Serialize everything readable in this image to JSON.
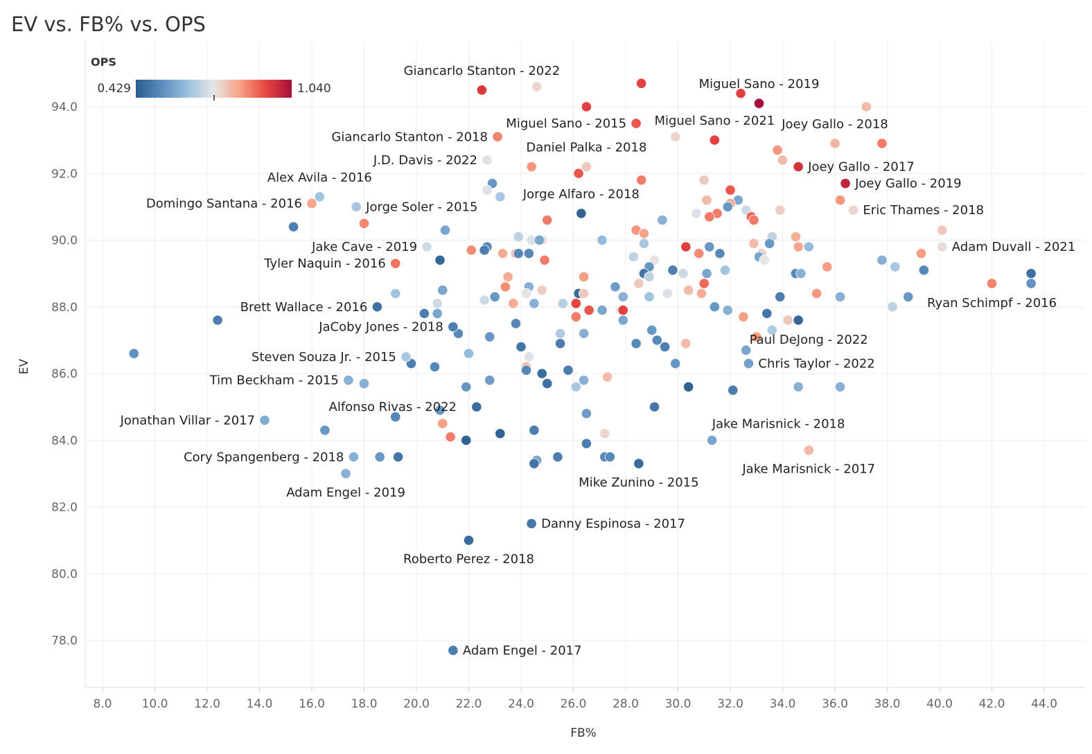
{
  "title": "EV vs. FB% vs. OPS",
  "chart_data": {
    "type": "scatter",
    "title": "EV vs. FB% vs. OPS",
    "xlabel": "FB%",
    "ylabel": "EV",
    "xlim": [
      7.4,
      45.2
    ],
    "ylim": [
      76.8,
      95.8
    ],
    "xticks": [
      "8.0",
      "10.0",
      "12.0",
      "14.0",
      "16.0",
      "18.0",
      "20.0",
      "22.0",
      "24.0",
      "26.0",
      "28.0",
      "30.0",
      "32.0",
      "34.0",
      "36.0",
      "38.0",
      "40.0",
      "42.0",
      "44.0"
    ],
    "yticks": [
      "78.0",
      "80.0",
      "82.0",
      "84.0",
      "86.0",
      "88.0",
      "90.0",
      "92.0",
      "94.0"
    ],
    "grid": true,
    "color_legend": {
      "title": "OPS",
      "min_label": "0.429",
      "max_label": "1.040",
      "min": 0.429,
      "max": 1.04,
      "placement": "top-left",
      "colors": [
        "#2c5d8f",
        "#5b8dbd",
        "#9cc1df",
        "#e6e6e6",
        "#f8a287",
        "#e8463f",
        "#a50f3a"
      ]
    },
    "labeled_points": [
      {
        "label": "Giancarlo Stanton - 2022",
        "x": 22.5,
        "y": 94.5,
        "ops": 0.96,
        "label_side": "above"
      },
      {
        "label": "Miguel Sano - 2019",
        "x": 33.1,
        "y": 94.1,
        "ops": 1.04,
        "label_side": "above"
      },
      {
        "label": "Miguel Sano - 2015",
        "x": 28.4,
        "y": 93.5,
        "ops": 0.92,
        "label_side": "left"
      },
      {
        "label": "Miguel Sano - 2021",
        "x": 31.4,
        "y": 93.0,
        "ops": 0.95,
        "label_side": "above"
      },
      {
        "label": "Joey Gallo - 2018",
        "x": 36.0,
        "y": 92.9,
        "ops": 0.81,
        "label_side": "above"
      },
      {
        "label": "Giancarlo Stanton - 2018",
        "x": 23.1,
        "y": 93.1,
        "ops": 0.87,
        "label_side": "left"
      },
      {
        "label": "Daniel Palka - 2018",
        "x": 26.5,
        "y": 92.2,
        "ops": 0.78,
        "label_side": "above"
      },
      {
        "label": "J.D. Davis - 2022",
        "x": 22.7,
        "y": 92.4,
        "ops": 0.72,
        "label_side": "left"
      },
      {
        "label": "Joey Gallo - 2017",
        "x": 34.6,
        "y": 92.2,
        "ops": 0.97,
        "label_side": "right"
      },
      {
        "label": "Joey Gallo - 2019",
        "x": 36.4,
        "y": 91.7,
        "ops": 1.0,
        "label_side": "right"
      },
      {
        "label": "Alex Avila - 2016",
        "x": 16.3,
        "y": 91.3,
        "ops": 0.64,
        "label_side": "above"
      },
      {
        "label": "Domingo Santana - 2016",
        "x": 16.0,
        "y": 91.1,
        "ops": 0.83,
        "label_side": "left"
      },
      {
        "label": "Jorge Alfaro - 2018",
        "x": 26.3,
        "y": 90.8,
        "ops": 0.44,
        "label_side": "above"
      },
      {
        "label": "Jorge Soler - 2015",
        "x": 17.7,
        "y": 91.0,
        "ops": 0.65,
        "label_side": "right"
      },
      {
        "label": "Eric Thames - 2018",
        "x": 36.7,
        "y": 90.9,
        "ops": 0.76,
        "label_side": "right"
      },
      {
        "label": "Jake Cave - 2019",
        "x": 20.4,
        "y": 89.8,
        "ops": 0.7,
        "label_side": "left"
      },
      {
        "label": "Adam Duvall - 2021",
        "x": 40.1,
        "y": 89.8,
        "ops": 0.75,
        "label_side": "right"
      },
      {
        "label": "Tyler Naquin - 2016",
        "x": 19.2,
        "y": 89.3,
        "ops": 0.89,
        "label_side": "left"
      },
      {
        "label": "Ryan Schimpf - 2016",
        "x": 42.0,
        "y": 88.7,
        "ops": 0.87,
        "label_side": "below-left"
      },
      {
        "label": "Brett Wallace - 2016",
        "x": 18.5,
        "y": 88.0,
        "ops": 0.47,
        "label_side": "left"
      },
      {
        "label": "JaCoby Jones - 2018",
        "x": 21.4,
        "y": 87.4,
        "ops": 0.5,
        "label_side": "left"
      },
      {
        "label": "Paul DeJong - 2022",
        "x": 34.6,
        "y": 87.6,
        "ops": 0.45,
        "label_side": "below-right"
      },
      {
        "label": "Steven Souza Jr. - 2015",
        "x": 19.6,
        "y": 86.5,
        "ops": 0.65,
        "label_side": "left"
      },
      {
        "label": "Chris Taylor - 2022",
        "x": 32.7,
        "y": 86.3,
        "ops": 0.57,
        "label_side": "right"
      },
      {
        "label": "Tim Beckham - 2015",
        "x": 17.4,
        "y": 85.8,
        "ops": 0.6,
        "label_side": "left"
      },
      {
        "label": "Alfonso Rivas - 2022",
        "x": 21.0,
        "y": 84.5,
        "ops": 0.84,
        "label_side": "above-left"
      },
      {
        "label": "Jonathan Villar - 2017",
        "x": 14.2,
        "y": 84.6,
        "ops": 0.59,
        "label_side": "left"
      },
      {
        "label": "Jake Marisnick - 2018",
        "x": 31.3,
        "y": 84.0,
        "ops": 0.58,
        "label_side": "above-right"
      },
      {
        "label": "Cory Spangenberg - 2018",
        "x": 17.6,
        "y": 83.5,
        "ops": 0.6,
        "label_side": "left"
      },
      {
        "label": "Jake Marisnick - 2017",
        "x": 35.0,
        "y": 83.7,
        "ops": 0.8,
        "label_side": "below"
      },
      {
        "label": "Adam Engel - 2019",
        "x": 17.3,
        "y": 83.0,
        "ops": 0.6,
        "label_side": "below"
      },
      {
        "label": "Mike Zunino - 2015",
        "x": 28.5,
        "y": 83.3,
        "ops": 0.46,
        "label_side": "below"
      },
      {
        "label": "Danny Espinosa - 2017",
        "x": 24.4,
        "y": 81.5,
        "ops": 0.48,
        "label_side": "right"
      },
      {
        "label": "Roberto Perez - 2018",
        "x": 22.0,
        "y": 81.0,
        "ops": 0.46,
        "label_side": "below"
      },
      {
        "label": "Adam Engel - 2017",
        "x": 21.4,
        "y": 77.7,
        "ops": 0.5,
        "label_side": "right"
      }
    ],
    "points": [
      {
        "x": 24.6,
        "y": 94.6,
        "ops": 0.76
      },
      {
        "x": 28.6,
        "y": 94.7,
        "ops": 0.95
      },
      {
        "x": 26.5,
        "y": 94.0,
        "ops": 0.95
      },
      {
        "x": 32.4,
        "y": 94.4,
        "ops": 0.95
      },
      {
        "x": 37.2,
        "y": 94.0,
        "ops": 0.8
      },
      {
        "x": 29.9,
        "y": 93.1,
        "ops": 0.76
      },
      {
        "x": 37.8,
        "y": 92.9,
        "ops": 0.88
      },
      {
        "x": 33.8,
        "y": 92.7,
        "ops": 0.85
      },
      {
        "x": 34.0,
        "y": 92.4,
        "ops": 0.8
      },
      {
        "x": 24.4,
        "y": 92.2,
        "ops": 0.85
      },
      {
        "x": 26.2,
        "y": 92.0,
        "ops": 0.92
      },
      {
        "x": 28.6,
        "y": 91.8,
        "ops": 0.88
      },
      {
        "x": 31.0,
        "y": 91.8,
        "ops": 0.78
      },
      {
        "x": 22.9,
        "y": 91.7,
        "ops": 0.55
      },
      {
        "x": 22.7,
        "y": 91.5,
        "ops": 0.72
      },
      {
        "x": 32.0,
        "y": 91.5,
        "ops": 0.92
      },
      {
        "x": 23.2,
        "y": 91.3,
        "ops": 0.65
      },
      {
        "x": 31.1,
        "y": 91.2,
        "ops": 0.8
      },
      {
        "x": 36.2,
        "y": 91.2,
        "ops": 0.85
      },
      {
        "x": 32.3,
        "y": 91.2,
        "ops": 0.58
      },
      {
        "x": 32.0,
        "y": 91.1,
        "ops": 0.82
      },
      {
        "x": 31.9,
        "y": 91.0,
        "ops": 0.55
      },
      {
        "x": 32.6,
        "y": 90.9,
        "ops": 0.7
      },
      {
        "x": 33.9,
        "y": 90.9,
        "ops": 0.77
      },
      {
        "x": 30.7,
        "y": 90.8,
        "ops": 0.72
      },
      {
        "x": 31.5,
        "y": 90.8,
        "ops": 0.88
      },
      {
        "x": 31.2,
        "y": 90.7,
        "ops": 0.88
      },
      {
        "x": 32.8,
        "y": 90.7,
        "ops": 0.9
      },
      {
        "x": 32.9,
        "y": 90.6,
        "ops": 0.88
      },
      {
        "x": 25.0,
        "y": 90.6,
        "ops": 0.88
      },
      {
        "x": 29.4,
        "y": 90.6,
        "ops": 0.6
      },
      {
        "x": 18.0,
        "y": 90.5,
        "ops": 0.87
      },
      {
        "x": 15.3,
        "y": 90.4,
        "ops": 0.5
      },
      {
        "x": 21.1,
        "y": 90.3,
        "ops": 0.58
      },
      {
        "x": 28.4,
        "y": 90.3,
        "ops": 0.85
      },
      {
        "x": 28.7,
        "y": 90.2,
        "ops": 0.83
      },
      {
        "x": 40.1,
        "y": 90.3,
        "ops": 0.78
      },
      {
        "x": 23.9,
        "y": 90.1,
        "ops": 0.68
      },
      {
        "x": 24.4,
        "y": 90.0,
        "ops": 0.72
      },
      {
        "x": 24.8,
        "y": 90.0,
        "ops": 0.76
      },
      {
        "x": 24.7,
        "y": 90.0,
        "ops": 0.58
      },
      {
        "x": 27.1,
        "y": 90.0,
        "ops": 0.62
      },
      {
        "x": 33.6,
        "y": 90.1,
        "ops": 0.68
      },
      {
        "x": 34.5,
        "y": 90.1,
        "ops": 0.82
      },
      {
        "x": 28.7,
        "y": 89.9,
        "ops": 0.65
      },
      {
        "x": 32.9,
        "y": 89.9,
        "ops": 0.8
      },
      {
        "x": 33.5,
        "y": 89.9,
        "ops": 0.55
      },
      {
        "x": 34.6,
        "y": 89.8,
        "ops": 0.83
      },
      {
        "x": 30.3,
        "y": 89.8,
        "ops": 0.95
      },
      {
        "x": 31.2,
        "y": 89.8,
        "ops": 0.55
      },
      {
        "x": 35.0,
        "y": 89.8,
        "ops": 0.62
      },
      {
        "x": 22.7,
        "y": 89.8,
        "ops": 0.52
      },
      {
        "x": 22.6,
        "y": 89.7,
        "ops": 0.5
      },
      {
        "x": 22.1,
        "y": 89.7,
        "ops": 0.86
      },
      {
        "x": 23.3,
        "y": 89.6,
        "ops": 0.82
      },
      {
        "x": 23.8,
        "y": 89.6,
        "ops": 0.8
      },
      {
        "x": 23.9,
        "y": 89.6,
        "ops": 0.52
      },
      {
        "x": 24.3,
        "y": 89.6,
        "ops": 0.52
      },
      {
        "x": 30.8,
        "y": 89.6,
        "ops": 0.86
      },
      {
        "x": 31.6,
        "y": 89.6,
        "ops": 0.52
      },
      {
        "x": 33.2,
        "y": 89.6,
        "ops": 0.77
      },
      {
        "x": 33.1,
        "y": 89.5,
        "ops": 0.58
      },
      {
        "x": 39.3,
        "y": 89.6,
        "ops": 0.84
      },
      {
        "x": 28.3,
        "y": 89.5,
        "ops": 0.68
      },
      {
        "x": 29.1,
        "y": 89.4,
        "ops": 0.74
      },
      {
        "x": 33.3,
        "y": 89.4,
        "ops": 0.73
      },
      {
        "x": 20.9,
        "y": 89.4,
        "ops": 0.45
      },
      {
        "x": 24.9,
        "y": 89.4,
        "ops": 0.88
      },
      {
        "x": 37.8,
        "y": 89.4,
        "ops": 0.6
      },
      {
        "x": 28.9,
        "y": 89.2,
        "ops": 0.55
      },
      {
        "x": 38.3,
        "y": 89.2,
        "ops": 0.65
      },
      {
        "x": 35.7,
        "y": 89.2,
        "ops": 0.84
      },
      {
        "x": 29.8,
        "y": 89.1,
        "ops": 0.5
      },
      {
        "x": 31.8,
        "y": 89.1,
        "ops": 0.64
      },
      {
        "x": 39.4,
        "y": 89.1,
        "ops": 0.52
      },
      {
        "x": 28.7,
        "y": 89.0,
        "ops": 0.48
      },
      {
        "x": 28.9,
        "y": 88.9,
        "ops": 0.68
      },
      {
        "x": 30.2,
        "y": 89.0,
        "ops": 0.7
      },
      {
        "x": 31.1,
        "y": 89.0,
        "ops": 0.58
      },
      {
        "x": 34.5,
        "y": 89.0,
        "ops": 0.52
      },
      {
        "x": 34.7,
        "y": 89.0,
        "ops": 0.6
      },
      {
        "x": 43.5,
        "y": 89.0,
        "ops": 0.47
      },
      {
        "x": 23.5,
        "y": 88.9,
        "ops": 0.82
      },
      {
        "x": 26.4,
        "y": 88.9,
        "ops": 0.84
      },
      {
        "x": 43.5,
        "y": 88.7,
        "ops": 0.54
      },
      {
        "x": 28.5,
        "y": 88.7,
        "ops": 0.78
      },
      {
        "x": 31.0,
        "y": 88.7,
        "ops": 0.9
      },
      {
        "x": 23.4,
        "y": 88.6,
        "ops": 0.86
      },
      {
        "x": 24.3,
        "y": 88.6,
        "ops": 0.6
      },
      {
        "x": 27.6,
        "y": 88.6,
        "ops": 0.56
      },
      {
        "x": 21.0,
        "y": 88.5,
        "ops": 0.58
      },
      {
        "x": 24.8,
        "y": 88.5,
        "ops": 0.77
      },
      {
        "x": 30.4,
        "y": 88.5,
        "ops": 0.8
      },
      {
        "x": 19.2,
        "y": 88.4,
        "ops": 0.64
      },
      {
        "x": 24.2,
        "y": 88.4,
        "ops": 0.73
      },
      {
        "x": 26.2,
        "y": 88.4,
        "ops": 0.46
      },
      {
        "x": 26.4,
        "y": 88.4,
        "ops": 0.78
      },
      {
        "x": 29.6,
        "y": 88.4,
        "ops": 0.72
      },
      {
        "x": 30.9,
        "y": 88.4,
        "ops": 0.82
      },
      {
        "x": 35.3,
        "y": 88.4,
        "ops": 0.85
      },
      {
        "x": 23.0,
        "y": 88.3,
        "ops": 0.55
      },
      {
        "x": 27.9,
        "y": 88.3,
        "ops": 0.6
      },
      {
        "x": 28.9,
        "y": 88.3,
        "ops": 0.64
      },
      {
        "x": 33.9,
        "y": 88.3,
        "ops": 0.5
      },
      {
        "x": 36.2,
        "y": 88.3,
        "ops": 0.6
      },
      {
        "x": 38.8,
        "y": 88.3,
        "ops": 0.55
      },
      {
        "x": 22.6,
        "y": 88.2,
        "ops": 0.7
      },
      {
        "x": 20.8,
        "y": 88.1,
        "ops": 0.7
      },
      {
        "x": 23.7,
        "y": 88.1,
        "ops": 0.82
      },
      {
        "x": 24.5,
        "y": 88.1,
        "ops": 0.6
      },
      {
        "x": 25.6,
        "y": 88.1,
        "ops": 0.67
      },
      {
        "x": 26.1,
        "y": 88.1,
        "ops": 0.94
      },
      {
        "x": 31.4,
        "y": 88.0,
        "ops": 0.55
      },
      {
        "x": 38.2,
        "y": 88.0,
        "ops": 0.68
      },
      {
        "x": 26.6,
        "y": 87.9,
        "ops": 0.92
      },
      {
        "x": 27.1,
        "y": 87.9,
        "ops": 0.58
      },
      {
        "x": 27.8,
        "y": 87.9,
        "ops": 0.74
      },
      {
        "x": 27.9,
        "y": 87.9,
        "ops": 0.95
      },
      {
        "x": 31.9,
        "y": 87.9,
        "ops": 0.6
      },
      {
        "x": 20.3,
        "y": 87.8,
        "ops": 0.5
      },
      {
        "x": 20.8,
        "y": 87.8,
        "ops": 0.58
      },
      {
        "x": 33.4,
        "y": 87.8,
        "ops": 0.48
      },
      {
        "x": 26.1,
        "y": 87.7,
        "ops": 0.88
      },
      {
        "x": 32.5,
        "y": 87.7,
        "ops": 0.84
      },
      {
        "x": 27.9,
        "y": 87.6,
        "ops": 0.58
      },
      {
        "x": 34.2,
        "y": 87.6,
        "ops": 0.78
      },
      {
        "x": 23.8,
        "y": 87.5,
        "ops": 0.52
      },
      {
        "x": 21.6,
        "y": 87.2,
        "ops": 0.52
      },
      {
        "x": 25.5,
        "y": 87.2,
        "ops": 0.66
      },
      {
        "x": 26.4,
        "y": 87.2,
        "ops": 0.6
      },
      {
        "x": 29.0,
        "y": 87.3,
        "ops": 0.55
      },
      {
        "x": 33.6,
        "y": 87.3,
        "ops": 0.66
      },
      {
        "x": 22.8,
        "y": 87.1,
        "ops": 0.55
      },
      {
        "x": 33.0,
        "y": 87.1,
        "ops": 0.84
      },
      {
        "x": 29.2,
        "y": 87.0,
        "ops": 0.52
      },
      {
        "x": 24.0,
        "y": 86.8,
        "ops": 0.48
      },
      {
        "x": 25.5,
        "y": 86.9,
        "ops": 0.5
      },
      {
        "x": 28.4,
        "y": 86.9,
        "ops": 0.52
      },
      {
        "x": 29.5,
        "y": 86.8,
        "ops": 0.5
      },
      {
        "x": 30.3,
        "y": 86.9,
        "ops": 0.8
      },
      {
        "x": 32.6,
        "y": 86.7,
        "ops": 0.58
      },
      {
        "x": 22.0,
        "y": 86.6,
        "ops": 0.62
      },
      {
        "x": 9.2,
        "y": 86.6,
        "ops": 0.54
      },
      {
        "x": 24.3,
        "y": 86.5,
        "ops": 0.72
      },
      {
        "x": 19.8,
        "y": 86.3,
        "ops": 0.5
      },
      {
        "x": 20.7,
        "y": 86.2,
        "ops": 0.52
      },
      {
        "x": 24.2,
        "y": 86.2,
        "ops": 0.8
      },
      {
        "x": 24.2,
        "y": 86.1,
        "ops": 0.52
      },
      {
        "x": 25.8,
        "y": 86.1,
        "ops": 0.5
      },
      {
        "x": 29.9,
        "y": 86.3,
        "ops": 0.55
      },
      {
        "x": 24.8,
        "y": 86.0,
        "ops": 0.46
      },
      {
        "x": 27.3,
        "y": 85.9,
        "ops": 0.8
      },
      {
        "x": 22.8,
        "y": 85.8,
        "ops": 0.56
      },
      {
        "x": 26.4,
        "y": 85.8,
        "ops": 0.6
      },
      {
        "x": 18.0,
        "y": 85.7,
        "ops": 0.6
      },
      {
        "x": 25.0,
        "y": 85.7,
        "ops": 0.47
      },
      {
        "x": 21.9,
        "y": 85.6,
        "ops": 0.55
      },
      {
        "x": 26.1,
        "y": 85.6,
        "ops": 0.65
      },
      {
        "x": 30.4,
        "y": 85.6,
        "ops": 0.44
      },
      {
        "x": 34.6,
        "y": 85.6,
        "ops": 0.6
      },
      {
        "x": 36.2,
        "y": 85.6,
        "ops": 0.6
      },
      {
        "x": 32.1,
        "y": 85.5,
        "ops": 0.5
      },
      {
        "x": 22.3,
        "y": 85.0,
        "ops": 0.46
      },
      {
        "x": 29.1,
        "y": 85.0,
        "ops": 0.48
      },
      {
        "x": 20.9,
        "y": 84.9,
        "ops": 0.55
      },
      {
        "x": 26.5,
        "y": 84.8,
        "ops": 0.56
      },
      {
        "x": 19.2,
        "y": 84.7,
        "ops": 0.52
      },
      {
        "x": 16.5,
        "y": 84.3,
        "ops": 0.55
      },
      {
        "x": 24.5,
        "y": 84.3,
        "ops": 0.5
      },
      {
        "x": 27.2,
        "y": 84.2,
        "ops": 0.76
      },
      {
        "x": 21.3,
        "y": 84.1,
        "ops": 0.88
      },
      {
        "x": 21.9,
        "y": 84.0,
        "ops": 0.44
      },
      {
        "x": 23.2,
        "y": 84.2,
        "ops": 0.44
      },
      {
        "x": 26.5,
        "y": 83.9,
        "ops": 0.5
      },
      {
        "x": 18.6,
        "y": 83.5,
        "ops": 0.55
      },
      {
        "x": 19.3,
        "y": 83.5,
        "ops": 0.48
      },
      {
        "x": 24.6,
        "y": 83.4,
        "ops": 0.58
      },
      {
        "x": 25.4,
        "y": 83.5,
        "ops": 0.5
      },
      {
        "x": 27.2,
        "y": 83.5,
        "ops": 0.52
      },
      {
        "x": 27.4,
        "y": 83.5,
        "ops": 0.52
      },
      {
        "x": 24.5,
        "y": 83.3,
        "ops": 0.48
      },
      {
        "x": 12.4,
        "y": 87.6,
        "ops": 0.5
      }
    ]
  }
}
